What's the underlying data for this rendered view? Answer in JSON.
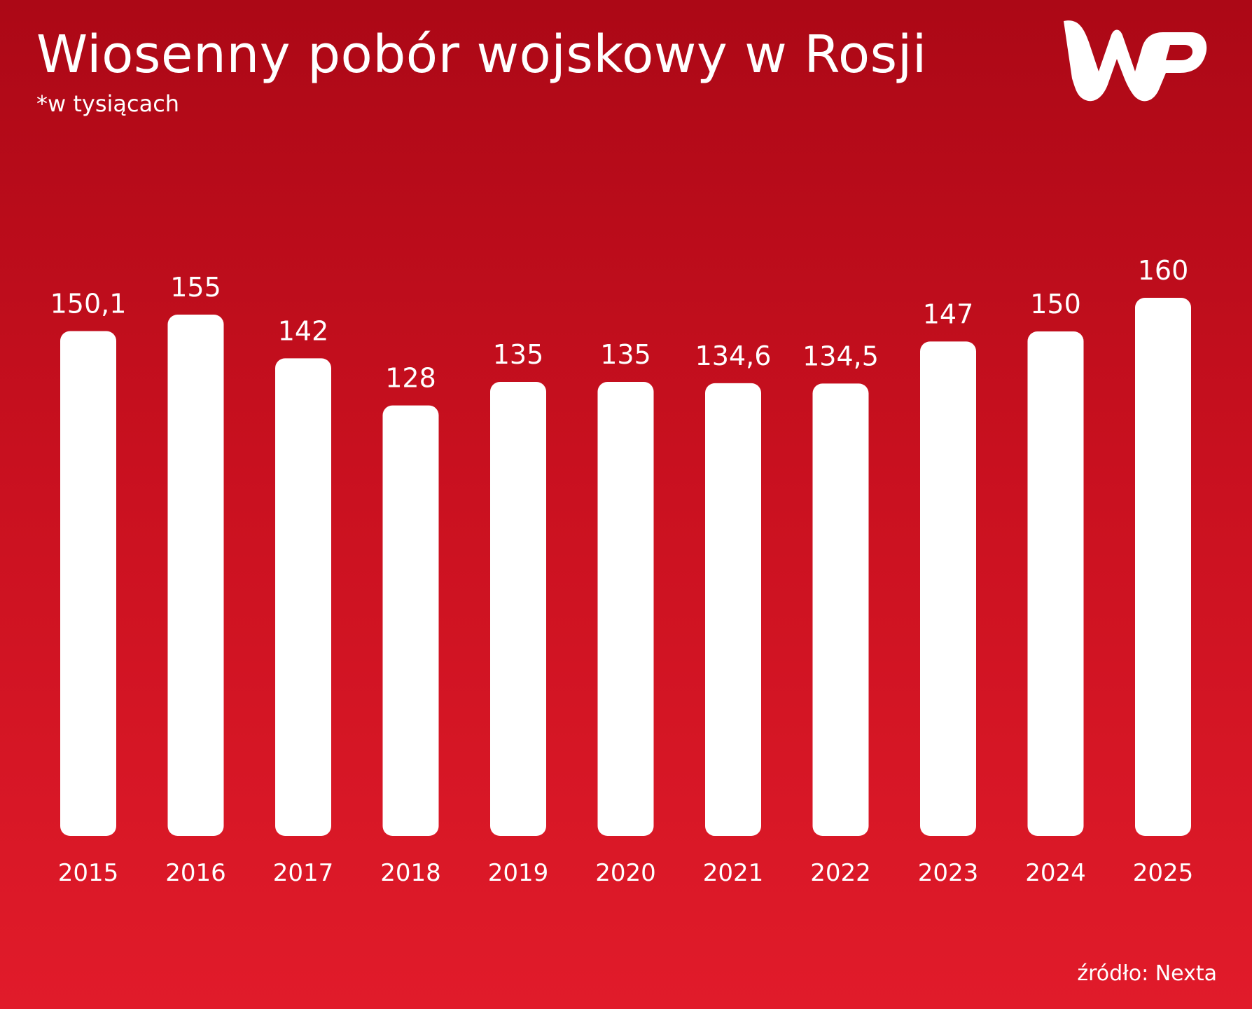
{
  "header": {
    "title": "Wiosenny pobór wojskowy w Rosji",
    "subtitle": "*w tysiącach"
  },
  "logo": {
    "icon": "wp-logo-icon",
    "text": "WP"
  },
  "footer": {
    "source": "źródło: Nexta"
  },
  "colors": {
    "background_top": "#ac0816",
    "background_bottom": "#e11b2a",
    "bars": "#ffffff",
    "text": "#ffffff"
  },
  "chart_data": {
    "type": "bar",
    "title": "Wiosenny pobór wojskowy w Rosji",
    "subtitle": "*w tysiącach",
    "categories": [
      "2015",
      "2016",
      "2017",
      "2018",
      "2019",
      "2020",
      "2021",
      "2022",
      "2023",
      "2024",
      "2025"
    ],
    "values": [
      150.1,
      155,
      142,
      128,
      135,
      135,
      134.6,
      134.5,
      147,
      150,
      160
    ],
    "value_labels": [
      "150,1",
      "155",
      "142",
      "128",
      "135",
      "135",
      "134,6",
      "134,5",
      "147",
      "150",
      "160"
    ],
    "xlabel": "",
    "ylabel": "",
    "grid": false,
    "legend": "none"
  }
}
